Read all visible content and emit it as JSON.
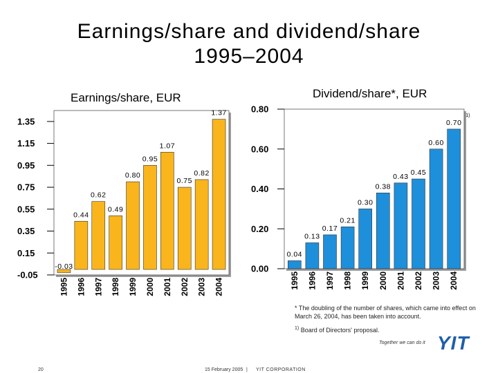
{
  "page": {
    "title_line1": "Earnings/share and dividend/share",
    "title_line2": "1995–2004",
    "footnote_main": "* The doubling of the number of shares, which came into effect on March 26, 2004, has been taken into account.",
    "footnote1_mark": "1)",
    "footnote1_text": "Board of Directors' proposal.",
    "slogan": "Together we can do it",
    "logo": "YIT",
    "page_number": "20",
    "date": "15 February 2005",
    "separator": "|",
    "company": "YIT CORPORATION"
  },
  "chart_data": [
    {
      "type": "bar",
      "title": "Earnings/share, EUR",
      "categories": [
        "1995",
        "1996",
        "1997",
        "1998",
        "1999",
        "2000",
        "2001",
        "2002",
        "2003",
        "2004"
      ],
      "values": [
        -0.03,
        0.44,
        0.62,
        0.49,
        0.8,
        0.95,
        1.07,
        0.75,
        0.82,
        1.37
      ],
      "value_labels": [
        "-0.03",
        "0.44",
        "0.62",
        "0.49",
        "0.80",
        "0.95",
        "1.07",
        "0.75",
        "0.82",
        "1.37"
      ],
      "yticks": [
        "1.35",
        "1.15",
        "0.95",
        "0.75",
        "0.55",
        "0.35",
        "0.15",
        "-0.05"
      ],
      "ylim": [
        -0.05,
        1.45
      ],
      "color": "#F9B51B",
      "grid": false
    },
    {
      "type": "bar",
      "title": "Dividend/share*, EUR",
      "categories": [
        "1995",
        "1996",
        "1997",
        "1998",
        "1999",
        "2000",
        "2001",
        "2002",
        "2003",
        "2004"
      ],
      "values": [
        0.04,
        0.13,
        0.17,
        0.21,
        0.3,
        0.38,
        0.43,
        0.45,
        0.6,
        0.7
      ],
      "value_labels": [
        "0.04",
        "0.13",
        "0.17",
        "0.21",
        "0.30",
        "0.38",
        "0.43",
        "0.45",
        "0.60",
        "0.70"
      ],
      "annotation": "1)",
      "yticks": [
        "0.80",
        "0.60",
        "0.40",
        "0.20",
        "0.00"
      ],
      "ylim": [
        0.0,
        0.8
      ],
      "color": "#1E8FDB",
      "grid": false
    }
  ]
}
